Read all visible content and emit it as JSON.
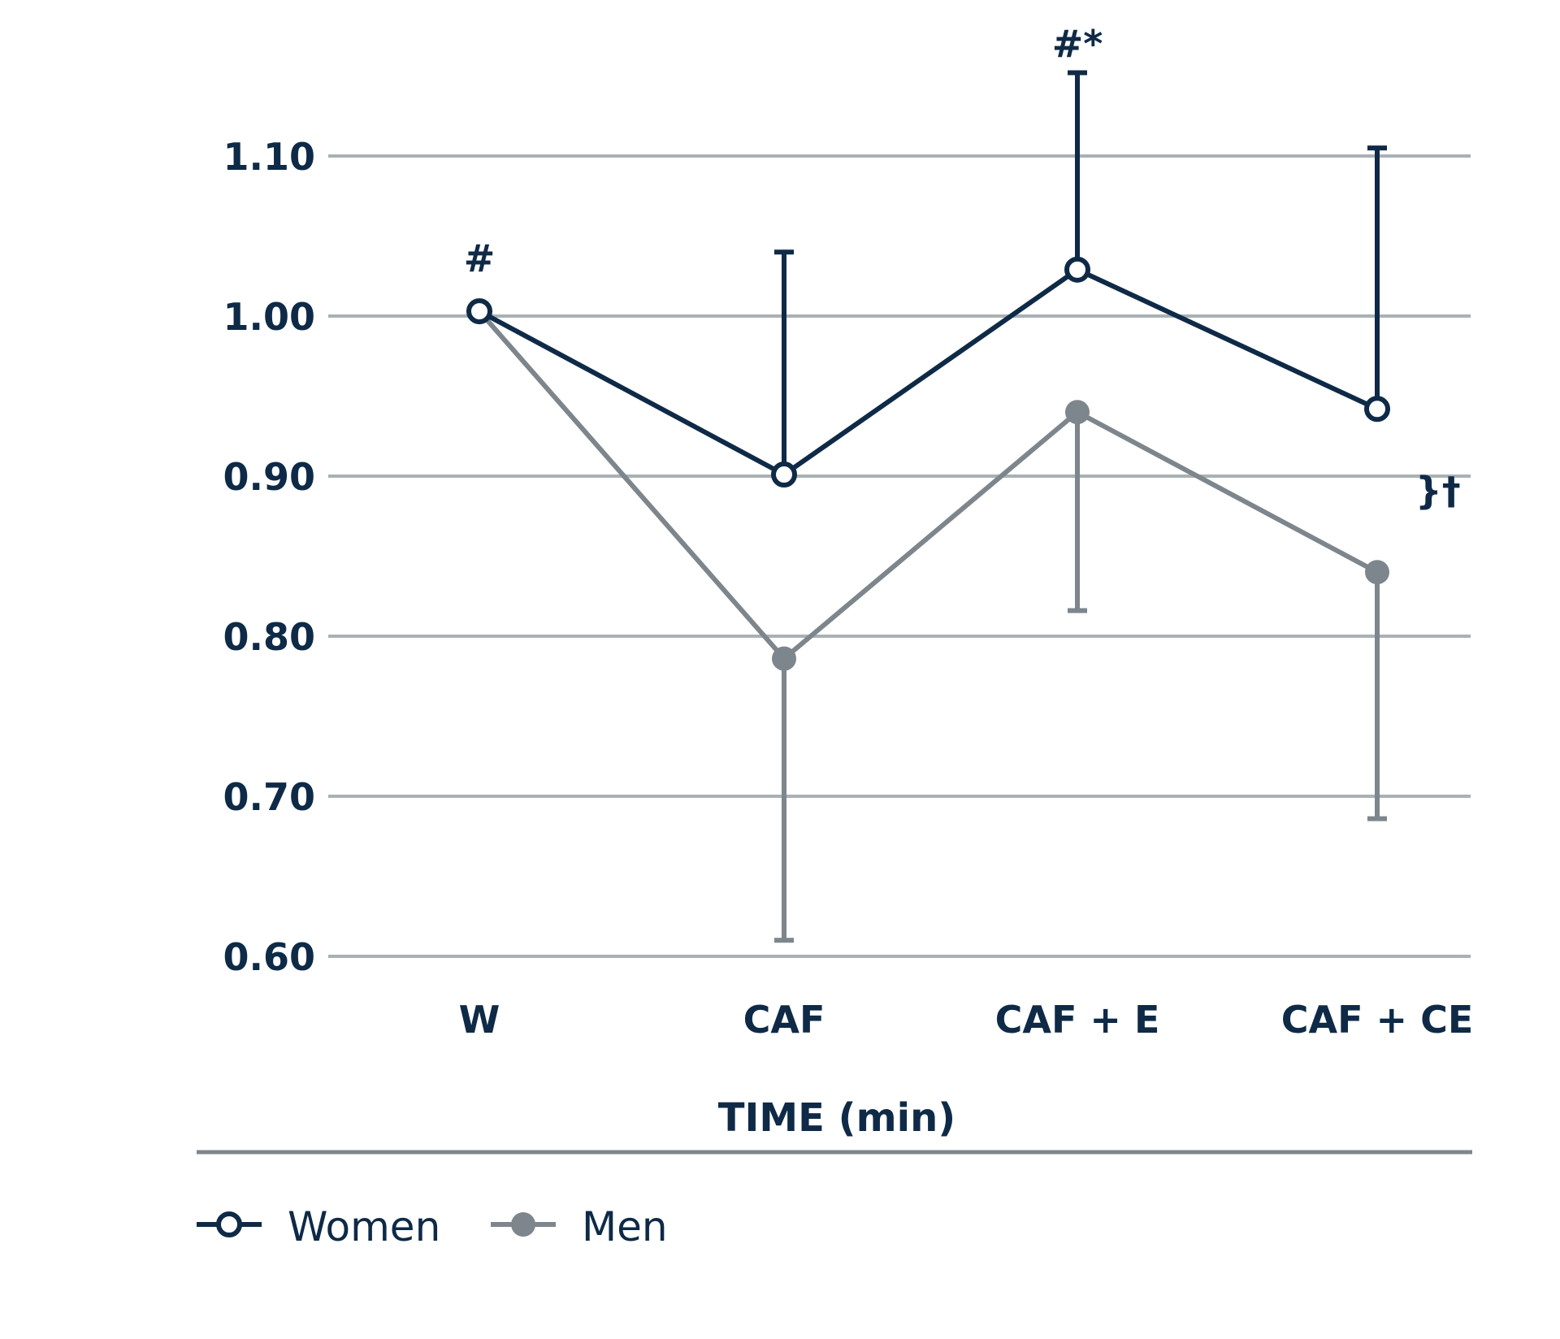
{
  "chart_data": {
    "type": "line",
    "categories": [
      "W",
      "CAF",
      "CAF + E",
      "CAF + CE"
    ],
    "xlabel": "TIME (min)",
    "ylabel": "",
    "ylim": [
      0.6,
      1.1
    ],
    "yticks": [
      "0.60",
      "0.70",
      "0.80",
      "0.90",
      "1.00",
      "1.10"
    ],
    "grid": true,
    "legend_position": "bottom-left",
    "series": [
      {
        "name": "Women",
        "marker": "open-circle",
        "color": "#0e2a47",
        "values": [
          1.003,
          0.901,
          1.029,
          0.942
        ],
        "error_upper": [
          null,
          1.04,
          1.152,
          1.105
        ]
      },
      {
        "name": "Men",
        "marker": "filled-circle",
        "color": "#7d868c",
        "values": [
          1.003,
          0.786,
          0.94,
          0.84
        ],
        "error_lower": [
          null,
          0.61,
          0.816,
          0.686
        ]
      }
    ],
    "annotations": [
      {
        "text": "#",
        "category": "W"
      },
      {
        "text": "#*",
        "category": "CAF + E"
      },
      {
        "text": "}†",
        "category": "CAF + CE"
      }
    ]
  },
  "colors": {
    "grid": "#a9b1b4",
    "axis_rule": "#7d868c",
    "text": "#0e2a47"
  }
}
